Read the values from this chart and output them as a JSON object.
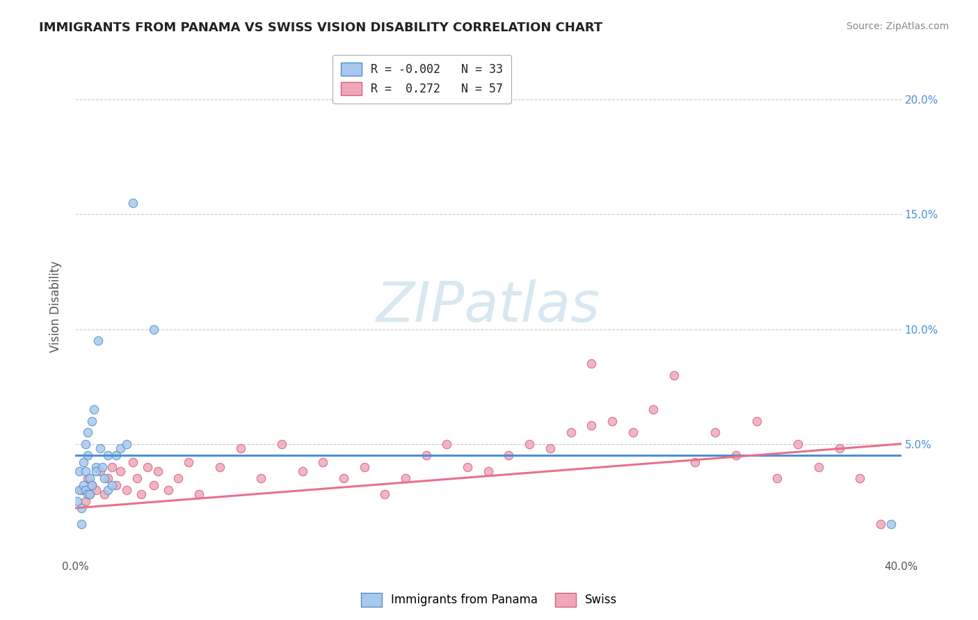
{
  "title": "IMMIGRANTS FROM PANAMA VS SWISS VISION DISABILITY CORRELATION CHART",
  "source": "Source: ZipAtlas.com",
  "ylabel": "Vision Disability",
  "watermark": "ZIPatlas",
  "legend_line1": "R = -0.002   N = 33",
  "legend_line2": "R =  0.272   N = 57",
  "xlim": [
    0.0,
    0.4
  ],
  "ylim": [
    0.0,
    0.22
  ],
  "xticks": [
    0.0,
    0.05,
    0.1,
    0.15,
    0.2,
    0.25,
    0.3,
    0.35,
    0.4
  ],
  "yticks": [
    0.0,
    0.05,
    0.1,
    0.15,
    0.2
  ],
  "panama_line_y": 0.045,
  "swiss_line_x0": 0.0,
  "swiss_line_y0": 0.022,
  "swiss_line_x1": 0.4,
  "swiss_line_y1": 0.05,
  "panama_scatter_x": [
    0.001,
    0.002,
    0.002,
    0.003,
    0.003,
    0.004,
    0.004,
    0.005,
    0.005,
    0.005,
    0.006,
    0.006,
    0.006,
    0.007,
    0.007,
    0.008,
    0.008,
    0.009,
    0.01,
    0.01,
    0.011,
    0.012,
    0.013,
    0.014,
    0.016,
    0.016,
    0.018,
    0.02,
    0.022,
    0.025,
    0.028,
    0.038,
    0.395
  ],
  "panama_scatter_y": [
    0.025,
    0.03,
    0.038,
    0.022,
    0.015,
    0.032,
    0.042,
    0.03,
    0.05,
    0.038,
    0.028,
    0.045,
    0.055,
    0.035,
    0.028,
    0.06,
    0.032,
    0.065,
    0.04,
    0.038,
    0.095,
    0.048,
    0.04,
    0.035,
    0.045,
    0.03,
    0.032,
    0.045,
    0.048,
    0.05,
    0.155,
    0.1,
    0.015
  ],
  "swiss_scatter_x": [
    0.003,
    0.005,
    0.006,
    0.007,
    0.008,
    0.01,
    0.012,
    0.014,
    0.016,
    0.018,
    0.02,
    0.022,
    0.025,
    0.028,
    0.03,
    0.032,
    0.035,
    0.038,
    0.04,
    0.045,
    0.05,
    0.055,
    0.06,
    0.07,
    0.08,
    0.09,
    0.1,
    0.11,
    0.12,
    0.13,
    0.14,
    0.15,
    0.16,
    0.17,
    0.18,
    0.19,
    0.2,
    0.21,
    0.22,
    0.23,
    0.24,
    0.25,
    0.26,
    0.27,
    0.28,
    0.29,
    0.3,
    0.31,
    0.32,
    0.33,
    0.34,
    0.35,
    0.36,
    0.37,
    0.38,
    0.39,
    0.25
  ],
  "swiss_scatter_y": [
    0.03,
    0.025,
    0.035,
    0.028,
    0.032,
    0.03,
    0.038,
    0.028,
    0.035,
    0.04,
    0.032,
    0.038,
    0.03,
    0.042,
    0.035,
    0.028,
    0.04,
    0.032,
    0.038,
    0.03,
    0.035,
    0.042,
    0.028,
    0.04,
    0.048,
    0.035,
    0.05,
    0.038,
    0.042,
    0.035,
    0.04,
    0.028,
    0.035,
    0.045,
    0.05,
    0.04,
    0.038,
    0.045,
    0.05,
    0.048,
    0.055,
    0.058,
    0.06,
    0.055,
    0.065,
    0.08,
    0.042,
    0.055,
    0.045,
    0.06,
    0.035,
    0.05,
    0.04,
    0.048,
    0.035,
    0.015,
    0.085
  ],
  "panama_line_color": "#4a90d9",
  "swiss_line_color": "#e8708a",
  "panama_dot_color": "#a8c8f0",
  "swiss_dot_color": "#f0a8b8",
  "panama_dot_edge": "#5090c0",
  "swiss_dot_edge": "#d06080",
  "background_color": "#ffffff",
  "grid_color": "#cccccc",
  "title_color": "#222222",
  "source_color": "#888888",
  "right_tick_color": "#4a90d9"
}
